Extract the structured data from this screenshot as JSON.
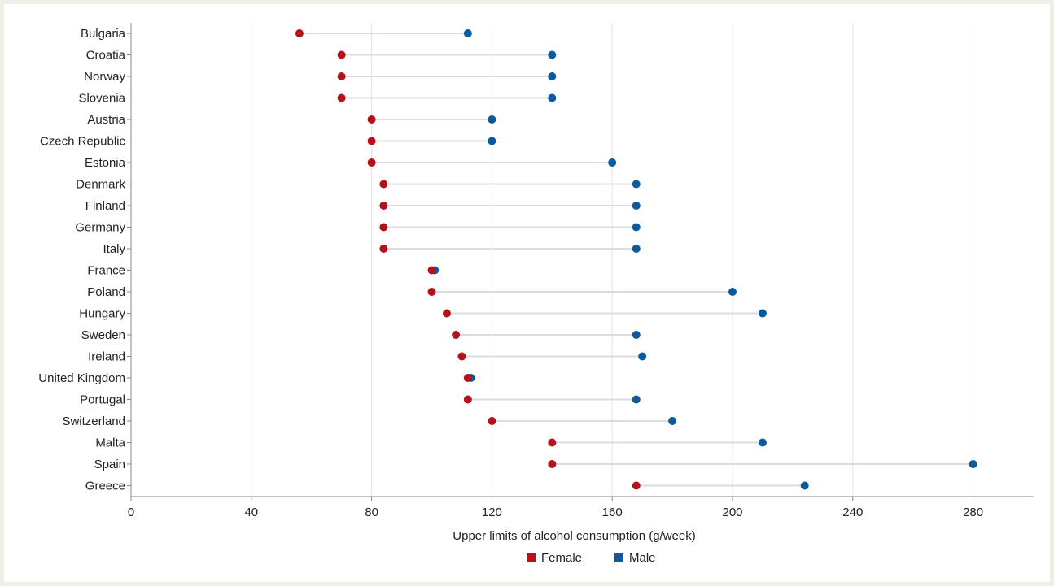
{
  "chart_data": {
    "type": "dumbbell",
    "xlabel": "Upper limits of alcohol consumption (g/week)",
    "xlim": [
      0,
      300
    ],
    "xticks": [
      0,
      40,
      80,
      120,
      160,
      200,
      240,
      280
    ],
    "grid": true,
    "legend_position": "bottom-center",
    "categories": [
      "Bulgaria",
      "Croatia",
      "Norway",
      "Slovenia",
      "Austria",
      "Czech Republic",
      "Estonia",
      "Denmark",
      "Finland",
      "Germany",
      "Italy",
      "France",
      "Poland",
      "Hungary",
      "Sweden",
      "Ireland",
      "United Kingdom",
      "Portugal",
      "Switzerland",
      "Malta",
      "Spain",
      "Greece"
    ],
    "series": [
      {
        "name": "Female",
        "color": "#b5121b",
        "values": [
          56,
          70,
          70,
          70,
          80,
          80,
          80,
          84,
          84,
          84,
          84,
          100,
          100,
          105,
          108,
          110,
          112,
          112,
          120,
          140,
          140,
          168
        ]
      },
      {
        "name": "Male",
        "color": "#0b5a9e",
        "values": [
          112,
          140,
          140,
          140,
          120,
          120,
          160,
          168,
          168,
          168,
          168,
          101,
          200,
          210,
          168,
          170,
          113,
          168,
          180,
          210,
          280,
          224
        ]
      }
    ]
  }
}
